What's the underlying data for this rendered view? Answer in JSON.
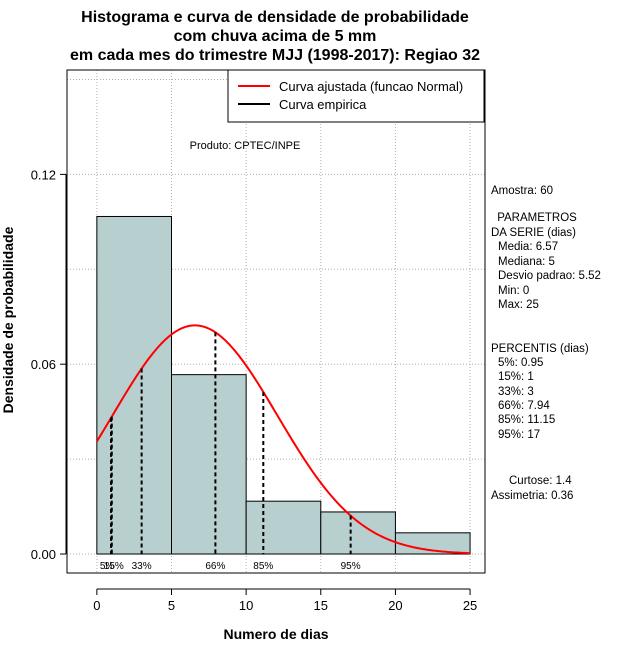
{
  "chart_data": {
    "type": "bar",
    "title": [
      "Histograma e curva de densidade de probabilidade",
      "com chuva acima de 5 mm",
      "em cada mes do trimestre MJJ (1998-2017): Regiao 32"
    ],
    "xlabel": "Numero de dias",
    "ylabel": "Densidade de probabilidade",
    "xlim": [
      -2,
      26
    ],
    "ylim": [
      -0.006,
      0.153
    ],
    "xticks": [
      0,
      5,
      10,
      15,
      20,
      25
    ],
    "yticks": [
      0.0,
      0.06,
      0.12
    ],
    "ytick_labels": [
      "0.00",
      "0.06",
      "0.12"
    ],
    "bins": [
      {
        "start": 0,
        "end": 5,
        "density": 0.1067
      },
      {
        "start": 5,
        "end": 10,
        "density": 0.0567
      },
      {
        "start": 10,
        "end": 15,
        "density": 0.0167
      },
      {
        "start": 15,
        "end": 20,
        "density": 0.0133
      },
      {
        "start": 20,
        "end": 25,
        "density": 0.0067
      }
    ],
    "normal_fit": {
      "mean": 6.57,
      "sd": 5.52,
      "x_range": [
        0,
        25
      ]
    },
    "percentile_lines": [
      {
        "label": "5%",
        "x": 0.95
      },
      {
        "label": "15%",
        "x": 1
      },
      {
        "label": "33%",
        "x": 3
      },
      {
        "label": "66%",
        "x": 7.94
      },
      {
        "label": "85%",
        "x": 11.15
      },
      {
        "label": "95%",
        "x": 17
      }
    ],
    "legend": [
      {
        "label": "Curva ajustada (funcao Normal)",
        "color": "#ff0000"
      },
      {
        "label": "Curva empirica",
        "color": "#000000"
      }
    ],
    "legend_position": "top-right",
    "grid": true,
    "annotation": "Produto: CPTEC/INPE"
  },
  "stats": {
    "amostra": "Amostra: 60",
    "parametros_title": [
      " PARAMETROS",
      "DA SERIE (dias)"
    ],
    "parametros": [
      "Media: 6.57",
      "Mediana: 5",
      "Desvio padrao: 5.52",
      "Min: 0",
      "Max: 25"
    ],
    "percentis_title": "PERCENTIS (dias)",
    "percentis": [
      "5%: 0.95",
      "15%: 1",
      "33%: 3",
      "66%: 7.94",
      "85%: 11.15",
      "95%: 17"
    ],
    "curtose": "Curtose: 1.4",
    "assimetria": "Assimetria: 0.36"
  },
  "colors": {
    "bar_fill": "#b8cfcf",
    "curve": "#ff0000",
    "grid": "#b0b0b0"
  }
}
